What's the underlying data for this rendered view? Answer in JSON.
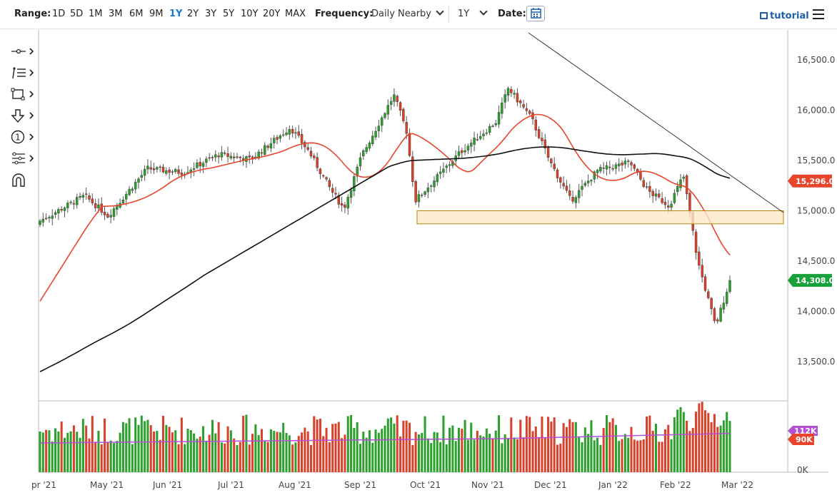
{
  "toolbar": {
    "range_label": "Range:",
    "ranges": [
      "1D",
      "5D",
      "1M",
      "3M",
      "6M",
      "9M",
      "1Y",
      "2Y",
      "3Y",
      "5Y",
      "10Y",
      "20Y",
      "MAX"
    ],
    "active_range": "1Y",
    "frequency_label": "Frequency:",
    "frequency_value": "Daily Nearby",
    "period_value": "1Y",
    "date_label": "Date:",
    "tutorial_label": "tutorial"
  },
  "drawing_tools": [
    "crosshair-tool-icon",
    "fibonacci-tool-icon",
    "rectangle-tool-icon",
    "arrow-tool-icon",
    "annotation-tool-icon",
    "pattern-tool-icon",
    "magnet-tool-icon"
  ],
  "drawing_tool_number": "1",
  "colors": {
    "up": "#2ca02c",
    "down": "#d9412b",
    "ma_fast": "#e8452c",
    "ma_slow": "#111111",
    "volume_avg": "#b44fd6",
    "zone_fill": "#fbe9c8",
    "zone_stroke": "#b8860b",
    "last_price": "#18a13a"
  },
  "chart_data": [
    {
      "type": "candlestick",
      "y_ticks": [
        "16,500.0",
        "16,000.0",
        "15,500.0",
        "15,000.0",
        "14,500.0",
        "14,000.0",
        "13,500.0"
      ],
      "ylim": [
        13100,
        16900
      ],
      "x_ticks": [
        "pr '21",
        "May '21",
        "Jun '21",
        "Jul '21",
        "Aug '21",
        "Sep '21",
        "Oct '21",
        "Nov '21",
        "Dec '21",
        "Jan '22",
        "Feb '22",
        "Mar '22"
      ],
      "close_series_monthly": [
        {
          "month": "Apr '21",
          "close": 15135
        },
        {
          "month": "May '21",
          "close": 15420
        },
        {
          "month": "Jun '21",
          "close": 15530
        },
        {
          "month": "Jul '21",
          "close": 15540
        },
        {
          "month": "Aug '21",
          "close": 15830
        },
        {
          "month": "Sep '21",
          "close": 15270
        },
        {
          "month": "Oct '21",
          "close": 15670
        },
        {
          "month": "Nov '21",
          "close": 15180
        },
        {
          "month": "Dec '21",
          "close": 15880
        },
        {
          "month": "Jan '22",
          "close": 15470
        },
        {
          "month": "Feb '22",
          "close": 14308
        }
      ],
      "ma_fast_label": "15,296.0",
      "ma_fast_value": 15296,
      "last_price_label": "14,308.0",
      "last_price_value": 14308,
      "support_zone": [
        14870,
        15000
      ],
      "grid": false
    },
    {
      "type": "bar",
      "series_name": "volume",
      "y_ticks": [
        "0K"
      ],
      "avg_label": "112K",
      "last_label": "90K"
    }
  ]
}
